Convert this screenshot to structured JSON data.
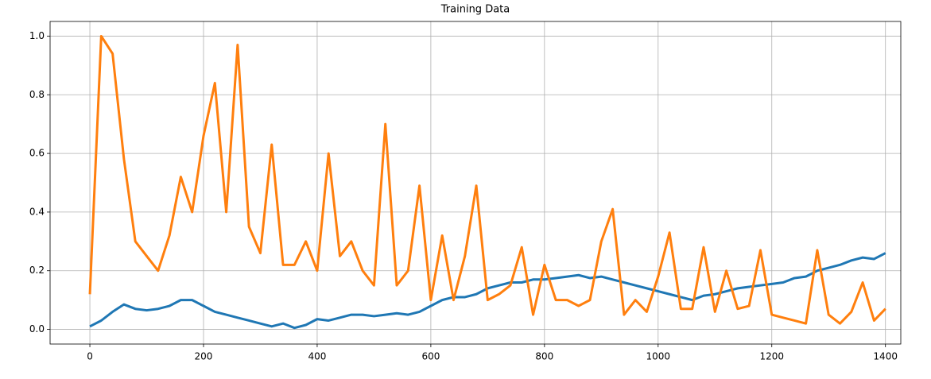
{
  "chart_data": {
    "type": "line",
    "title": "Training Data",
    "x": [
      0,
      20,
      40,
      60,
      80,
      100,
      120,
      140,
      160,
      180,
      200,
      220,
      240,
      260,
      280,
      300,
      320,
      340,
      360,
      380,
      400,
      420,
      440,
      460,
      480,
      500,
      520,
      540,
      560,
      580,
      600,
      620,
      640,
      660,
      680,
      700,
      720,
      740,
      760,
      780,
      800,
      820,
      840,
      860,
      880,
      900,
      920,
      940,
      960,
      980,
      1000,
      1020,
      1040,
      1060,
      1080,
      1100,
      1120,
      1140,
      1160,
      1180,
      1200,
      1220,
      1240,
      1260,
      1280,
      1300,
      1320,
      1340,
      1360,
      1380,
      1400
    ],
    "series": [
      {
        "color": "#1f77b4",
        "values": [
          0.01,
          0.03,
          0.06,
          0.085,
          0.07,
          0.065,
          0.07,
          0.08,
          0.1,
          0.1,
          0.08,
          0.06,
          0.05,
          0.04,
          0.03,
          0.02,
          0.01,
          0.02,
          0.005,
          0.015,
          0.035,
          0.03,
          0.04,
          0.05,
          0.05,
          0.045,
          0.05,
          0.055,
          0.05,
          0.06,
          0.08,
          0.1,
          0.11,
          0.11,
          0.12,
          0.14,
          0.15,
          0.16,
          0.16,
          0.17,
          0.17,
          0.175,
          0.18,
          0.185,
          0.175,
          0.18,
          0.17,
          0.16,
          0.15,
          0.14,
          0.13,
          0.12,
          0.11,
          0.1,
          0.115,
          0.12,
          0.13,
          0.14,
          0.145,
          0.15,
          0.155,
          0.16,
          0.175,
          0.18,
          0.2,
          0.21,
          0.22,
          0.235,
          0.245,
          0.24,
          0.26
        ]
      },
      {
        "color": "#ff7f0e",
        "values": [
          0.12,
          1.0,
          0.94,
          0.58,
          0.3,
          0.25,
          0.2,
          0.32,
          0.52,
          0.4,
          0.66,
          0.84,
          0.4,
          0.97,
          0.35,
          0.26,
          0.63,
          0.22,
          0.22,
          0.3,
          0.2,
          0.6,
          0.25,
          0.3,
          0.2,
          0.15,
          0.7,
          0.15,
          0.2,
          0.49,
          0.1,
          0.32,
          0.1,
          0.25,
          0.49,
          0.1,
          0.12,
          0.15,
          0.28,
          0.05,
          0.22,
          0.1,
          0.1,
          0.08,
          0.1,
          0.3,
          0.41,
          0.05,
          0.1,
          0.06,
          0.18,
          0.33,
          0.07,
          0.07,
          0.28,
          0.06,
          0.2,
          0.07,
          0.08,
          0.27,
          0.05,
          0.04,
          0.03,
          0.02,
          0.27,
          0.05,
          0.02,
          0.06,
          0.16,
          0.03,
          0.07
        ]
      }
    ],
    "xlim": [
      -70,
      1427
    ],
    "xticks": [
      0,
      200,
      400,
      600,
      800,
      1000,
      1200,
      1400
    ],
    "ylim": [
      -0.05,
      1.05
    ],
    "yticks": [
      {
        "value": 0,
        "label": "0.0"
      },
      0.2,
      0.4,
      0.6,
      0.8,
      {
        "value": 1,
        "label": "1.0"
      }
    ],
    "grid": true
  }
}
